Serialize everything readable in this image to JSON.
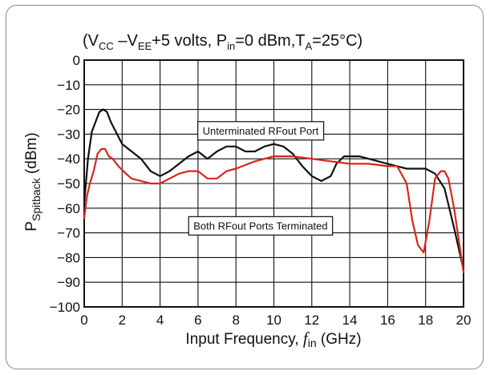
{
  "chart_data": {
    "type": "line",
    "title": {
      "pre": "(V",
      "vcc_sub": "CC",
      "mid1": " –V",
      "vee_sub": "EE",
      "mid2": "+5 volts, P",
      "pin_sub": "in",
      "mid3": "=0 dBm,T",
      "ta_sub": "A",
      "post": "=25°C)"
    },
    "xlabel": {
      "pre": "Input Frequency, ",
      "var": "f",
      "sub": "in",
      "post": " (GHz)"
    },
    "ylabel": {
      "pre": "P",
      "sub": "Spitback",
      "post": " (dBm)"
    },
    "xlim": [
      0,
      20
    ],
    "ylim": [
      -100,
      0
    ],
    "xticks": [
      "0",
      "2",
      "4",
      "6",
      "8",
      "10",
      "12",
      "14",
      "16",
      "18",
      "20"
    ],
    "yticks": [
      "0",
      "−10",
      "−20",
      "−30",
      "−40",
      "−50",
      "−60",
      "−70",
      "−80",
      "−90",
      "−100"
    ],
    "grid": true,
    "annotations": [
      {
        "text": "Unterminated RFout Port",
        "x": 9.3,
        "y": -28.5
      },
      {
        "text": "Both RFout Ports Terminated",
        "x": 9.3,
        "y": -67
      }
    ],
    "series": [
      {
        "color": "#111111",
        "x": [
          0,
          0.2,
          0.4,
          0.6,
          0.8,
          1.0,
          1.2,
          1.4,
          1.6,
          2.0,
          2.5,
          3.0,
          3.5,
          4.0,
          4.5,
          5.0,
          5.5,
          6.0,
          6.5,
          7.0,
          7.5,
          8.0,
          8.5,
          9.0,
          9.5,
          10.0,
          10.5,
          11.0,
          11.5,
          12.0,
          12.5,
          13.0,
          13.3,
          13.7,
          14.0,
          14.5,
          15.0,
          15.5,
          16.0,
          16.5,
          17.0,
          17.5,
          18.0,
          18.5,
          19.0,
          19.5,
          20.0
        ],
        "y": [
          -58,
          -40,
          -29,
          -25,
          -21,
          -20,
          -21,
          -25,
          -28,
          -34,
          -37,
          -40,
          -45,
          -47,
          -45,
          -42,
          -39,
          -37,
          -40,
          -37,
          -35,
          -35,
          -37,
          -37,
          -35,
          -34,
          -35,
          -38,
          -43,
          -47,
          -49,
          -47,
          -42,
          -39,
          -39,
          -39,
          -40,
          -41,
          -42,
          -43,
          -44,
          -44,
          -44,
          -46,
          -52,
          -68,
          -85
        ]
      },
      {
        "color": "#d9261c",
        "x": [
          0,
          0.15,
          0.3,
          0.5,
          0.7,
          0.9,
          1.1,
          1.3,
          1.5,
          1.8,
          2.2,
          2.5,
          3.0,
          3.5,
          4.0,
          5.0,
          5.5,
          6.0,
          6.5,
          7.0,
          7.5,
          8.0,
          9.0,
          10.0,
          11.0,
          12.0,
          13.0,
          14.0,
          15.0,
          16.0,
          16.5,
          17.0,
          17.3,
          17.6,
          17.9,
          18.2,
          18.5,
          18.8,
          19.0,
          19.2,
          19.5,
          20.0
        ],
        "y": [
          -64,
          -55,
          -50,
          -45,
          -38,
          -36,
          -36,
          -39,
          -40,
          -43,
          -46,
          -48,
          -49,
          -50,
          -50,
          -46,
          -45,
          -45,
          -48,
          -48,
          -45,
          -44,
          -41,
          -39,
          -39,
          -40,
          -41,
          -42,
          -42,
          -43,
          -43,
          -50,
          -65,
          -75,
          -78,
          -65,
          -48,
          -45,
          -45,
          -48,
          -60,
          -86
        ]
      }
    ]
  }
}
